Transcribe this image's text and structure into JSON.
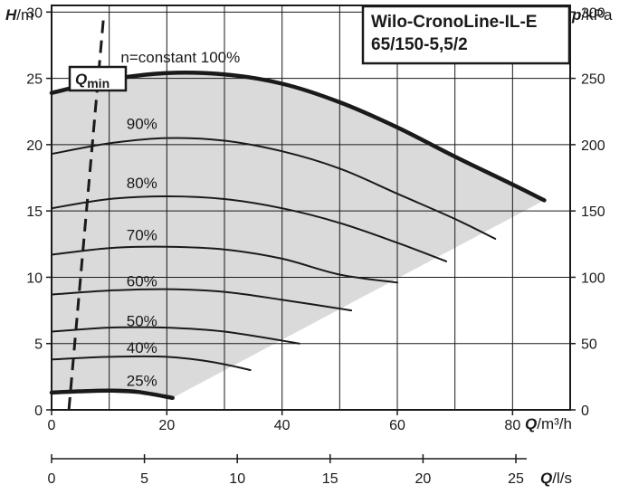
{
  "chart_data": {
    "type": "line",
    "title_lines": [
      "Wilo-CronoLine-IL-E",
      "65/150-5,5/2"
    ],
    "y_left": {
      "label_italic": "H",
      "label_unit": "/m",
      "range": [
        0,
        30.5
      ],
      "ticks": [
        0,
        5,
        10,
        15,
        20,
        25,
        30
      ]
    },
    "y_right": {
      "label_italic": "p",
      "label_unit": "/kPa",
      "range": [
        0,
        305
      ],
      "ticks": [
        0,
        50,
        100,
        150,
        200,
        250,
        300
      ]
    },
    "x_main": {
      "label_italic": "Q",
      "label_unit": "/m³/h",
      "range": [
        0,
        90
      ],
      "ticks": [
        0,
        20,
        40,
        60,
        80
      ]
    },
    "x_secondary": {
      "label_italic": "Q",
      "label_unit": "/l/s",
      "range": [
        0,
        25
      ],
      "ticks": [
        0,
        5,
        10,
        15,
        20,
        25
      ]
    },
    "grid": true,
    "qmin": {
      "label": "Q",
      "label_sub": "min",
      "points": [
        [
          3,
          0
        ],
        [
          9,
          29.5
        ]
      ]
    },
    "operating_range_fill": "#dadada",
    "series": [
      {
        "name": "n=constant 100%",
        "bold": true,
        "label_at": [
          12,
          26.2
        ],
        "x": [
          0,
          10,
          20,
          30,
          40,
          50,
          60,
          70,
          80,
          85.5
        ],
        "y": [
          23.9,
          24.9,
          25.4,
          25.3,
          24.6,
          23.2,
          21.3,
          19.1,
          17.0,
          15.8
        ]
      },
      {
        "name": "90%",
        "label_at": [
          13,
          21.2
        ],
        "x": [
          0,
          10,
          20,
          30,
          40,
          50,
          60,
          70,
          77
        ],
        "y": [
          19.3,
          20.1,
          20.5,
          20.3,
          19.5,
          18.2,
          16.3,
          14.4,
          12.9
        ]
      },
      {
        "name": "80%",
        "label_at": [
          13,
          16.7
        ],
        "x": [
          0,
          10,
          20,
          30,
          40,
          50,
          60,
          68.5
        ],
        "y": [
          15.2,
          15.9,
          16.1,
          15.9,
          15.2,
          14.1,
          12.6,
          11.2
        ]
      },
      {
        "name": "70%",
        "label_at": [
          13,
          12.8
        ],
        "x": [
          0,
          10,
          20,
          30,
          40,
          50,
          60
        ],
        "y": [
          11.7,
          12.2,
          12.3,
          12.1,
          11.4,
          10.2,
          9.6
        ]
      },
      {
        "name": "60%",
        "label_at": [
          13,
          9.3
        ],
        "x": [
          0,
          10,
          20,
          30,
          40,
          52
        ],
        "y": [
          8.7,
          9.0,
          9.1,
          8.9,
          8.3,
          7.5
        ]
      },
      {
        "name": "50%",
        "label_at": [
          13,
          6.3
        ],
        "x": [
          0,
          10,
          20,
          30,
          43
        ],
        "y": [
          5.9,
          6.2,
          6.2,
          5.9,
          5.0
        ]
      },
      {
        "name": "40%",
        "label_at": [
          13,
          4.3
        ],
        "x": [
          0,
          10,
          20,
          28,
          34.5
        ],
        "y": [
          3.8,
          4.0,
          4.0,
          3.6,
          3.0
        ]
      },
      {
        "name": "25%",
        "bold": true,
        "label_at": [
          13,
          1.8
        ],
        "x": [
          0,
          5,
          10,
          15,
          21
        ],
        "y": [
          1.3,
          1.4,
          1.45,
          1.35,
          0.9
        ]
      }
    ]
  }
}
